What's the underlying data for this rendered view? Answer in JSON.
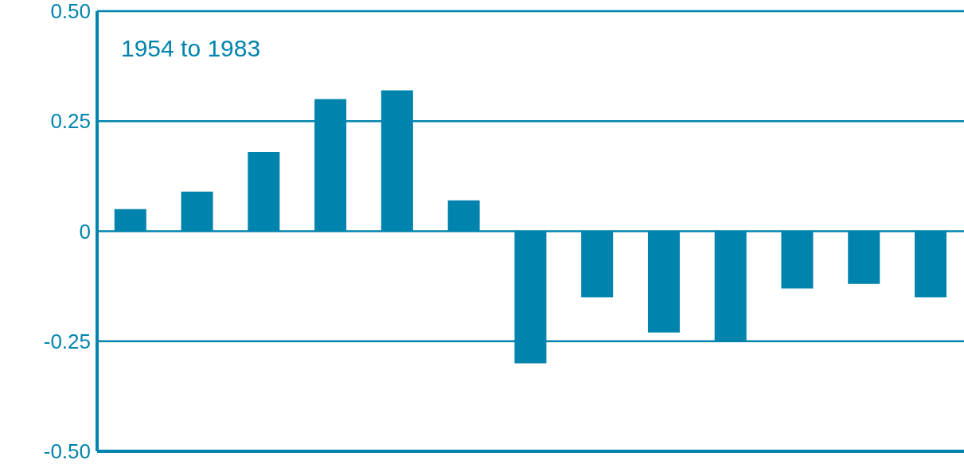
{
  "chart_data": {
    "type": "bar",
    "categories": [
      null,
      null,
      null,
      null,
      null,
      null,
      null,
      null,
      null,
      null,
      null,
      null,
      null
    ],
    "values": [
      0.05,
      0.09,
      0.18,
      0.3,
      0.32,
      0.07,
      -0.3,
      -0.15,
      -0.23,
      -0.25,
      -0.13,
      -0.12,
      -0.15
    ],
    "color": "#0083ad",
    "ylim": [
      -0.5,
      0.5
    ],
    "yticks": [
      {
        "value": 0.5,
        "label": "0.50"
      },
      0.25,
      0,
      -0.25,
      {
        "value": -0.5,
        "label": "-0.50"
      }
    ],
    "grid": "y",
    "tick_labels": "y",
    "annotations": [
      "1954 to 1983"
    ]
  }
}
